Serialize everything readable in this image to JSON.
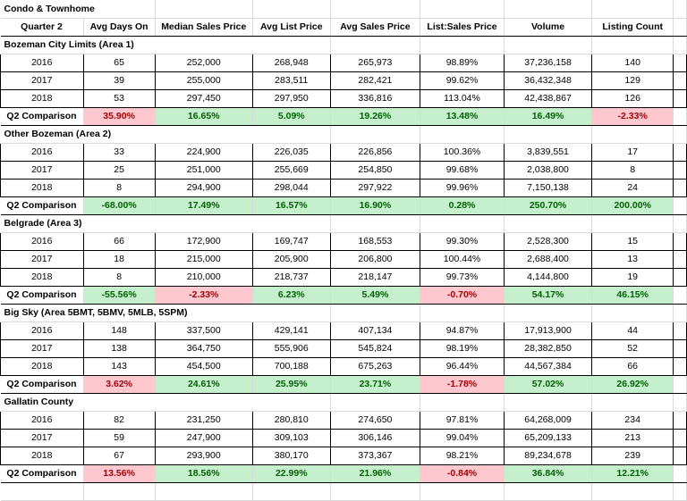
{
  "title": "Condo & Townhome",
  "headers": [
    "Quarter 2",
    "Avg Days On",
    "Median Sales Price",
    "Avg List Price",
    "Avg Sales Price",
    "List:Sales Price",
    "Volume",
    "Listing Count"
  ],
  "compare_label": "Q2 Comparison",
  "sections": [
    {
      "name": "Bozeman City Limits (Area 1)",
      "rows": [
        [
          "2016",
          "65",
          "252,000",
          "268,948",
          "265,973",
          "98.89%",
          "37,236,158",
          "140"
        ],
        [
          "2017",
          "39",
          "255,000",
          "283,511",
          "282,421",
          "99.62%",
          "36,432,348",
          "129"
        ],
        [
          "2018",
          "53",
          "297,450",
          "297,950",
          "336,816",
          "113.04%",
          "42,438,867",
          "126"
        ]
      ],
      "comparison": [
        "35.90%",
        "16.65%",
        "5.09%",
        "19.26%",
        "13.48%",
        "16.49%",
        "-2.33%"
      ],
      "comparison_tone": [
        "neg",
        "pos",
        "pos",
        "pos",
        "pos",
        "pos",
        "neg"
      ]
    },
    {
      "name": "Other Bozeman (Area 2)",
      "rows": [
        [
          "2016",
          "33",
          "224,900",
          "226,035",
          "226,856",
          "100.36%",
          "3,839,551",
          "17"
        ],
        [
          "2017",
          "25",
          "251,000",
          "255,669",
          "254,850",
          "99.68%",
          "2,038,800",
          "8"
        ],
        [
          "2018",
          "8",
          "294,900",
          "298,044",
          "297,922",
          "99.96%",
          "7,150,138",
          "24"
        ]
      ],
      "comparison": [
        "-68.00%",
        "17.49%",
        "16.57%",
        "16.90%",
        "0.28%",
        "250.70%",
        "200.00%"
      ],
      "comparison_tone": [
        "pos",
        "pos",
        "pos",
        "pos",
        "pos",
        "pos",
        "pos"
      ]
    },
    {
      "name": "Belgrade (Area 3)",
      "rows": [
        [
          "2016",
          "66",
          "172,900",
          "169,747",
          "168,553",
          "99.30%",
          "2,528,300",
          "15"
        ],
        [
          "2017",
          "18",
          "215,000",
          "205,900",
          "206,800",
          "100.44%",
          "2,688,400",
          "13"
        ],
        [
          "2018",
          "8",
          "210,000",
          "218,737",
          "218,147",
          "99.73%",
          "4,144,800",
          "19"
        ]
      ],
      "comparison": [
        "-55.56%",
        "-2.33%",
        "6.23%",
        "5.49%",
        "-0.70%",
        "54.17%",
        "46.15%"
      ],
      "comparison_tone": [
        "pos",
        "neg",
        "pos",
        "pos",
        "neg",
        "pos",
        "pos"
      ]
    },
    {
      "name": "Big Sky (Area 5BMT, 5BMV, 5MLB, 5SPM)",
      "rows": [
        [
          "2016",
          "148",
          "337,500",
          "429,141",
          "407,134",
          "94.87%",
          "17,913,900",
          "44"
        ],
        [
          "2017",
          "138",
          "364,750",
          "555,906",
          "545,824",
          "98.19%",
          "28,382,850",
          "52"
        ],
        [
          "2018",
          "143",
          "454,500",
          "700,188",
          "675,263",
          "96.44%",
          "44,567,384",
          "66"
        ]
      ],
      "comparison": [
        "3.62%",
        "24.61%",
        "25.95%",
        "23.71%",
        "-1.78%",
        "57.02%",
        "26.92%"
      ],
      "comparison_tone": [
        "neg",
        "pos",
        "pos",
        "pos",
        "neg",
        "pos",
        "pos"
      ]
    },
    {
      "name": "Gallatin County",
      "rows": [
        [
          "2016",
          "82",
          "231,250",
          "280,810",
          "274,650",
          "97.81%",
          "64,268,009",
          "234"
        ],
        [
          "2017",
          "59",
          "247,900",
          "309,103",
          "306,146",
          "99.04%",
          "65,209,133",
          "213"
        ],
        [
          "2018",
          "67",
          "293,900",
          "380,170",
          "373,367",
          "98.21%",
          "89,234,678",
          "239"
        ]
      ],
      "comparison": [
        "13.56%",
        "18.56%",
        "22.99%",
        "21.96%",
        "-0.84%",
        "36.84%",
        "12.21%"
      ],
      "comparison_tone": [
        "neg",
        "pos",
        "pos",
        "pos",
        "neg",
        "pos",
        "pos"
      ]
    }
  ],
  "colors": {
    "positive_fill": "#c6efce",
    "positive_text": "#006100",
    "negative_fill": "#ffc7ce",
    "negative_text": "#9c0006"
  }
}
